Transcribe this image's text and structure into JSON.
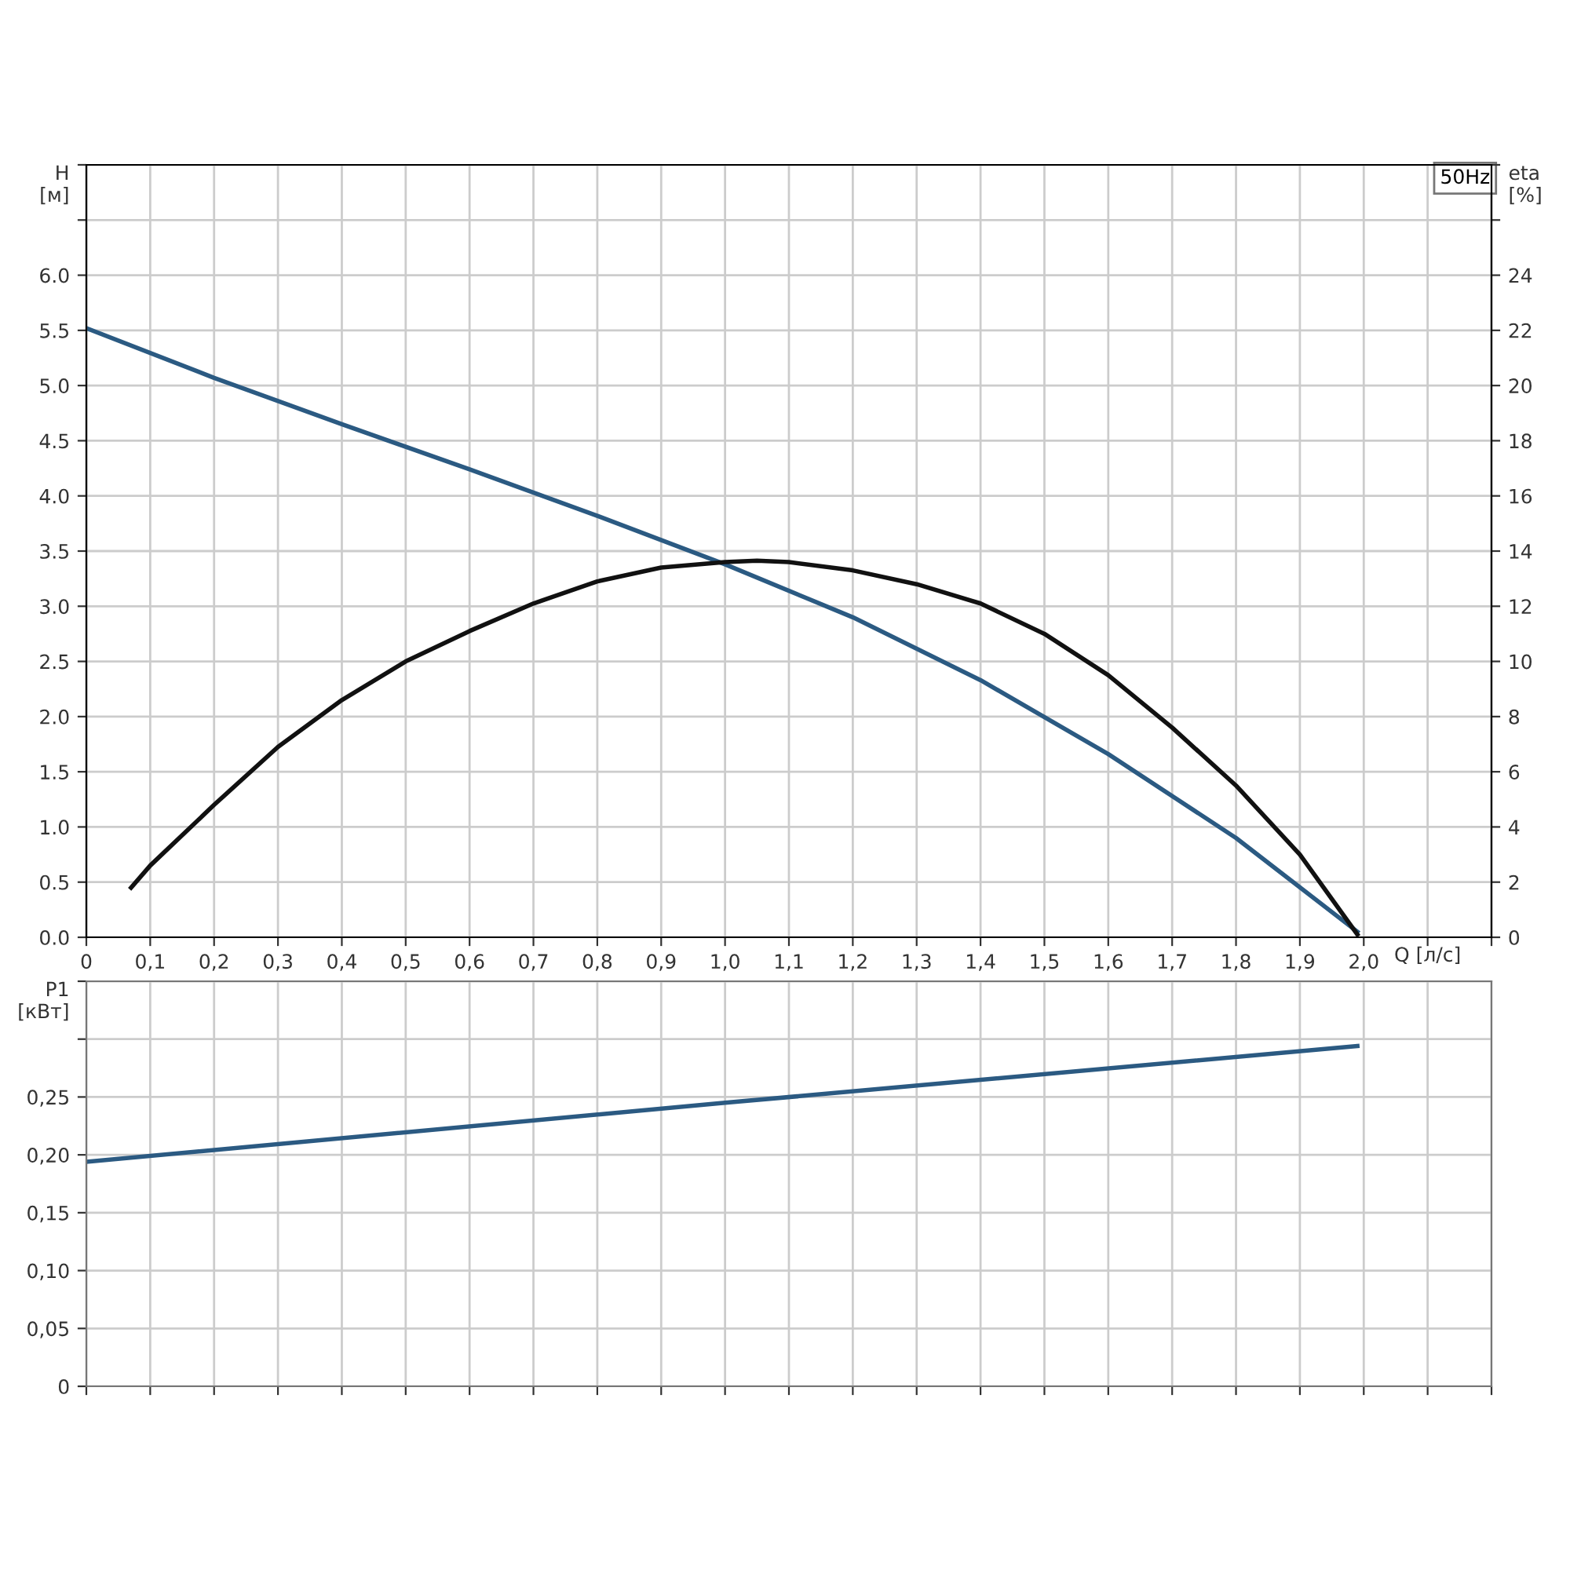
{
  "chart_data": [
    {
      "type": "line",
      "ylabel": "H\n[м]",
      "y2label": "eta\n[%]",
      "xlabel": "Q [л/с]",
      "annotations": [
        "50Hz"
      ],
      "grid": true,
      "legend": false,
      "marker": "none",
      "line_style": "solid",
      "xlim": [
        0,
        2.2
      ],
      "xticks": [
        0,
        {
          "value": 0.1,
          "label": "0,1"
        },
        {
          "value": 0.2,
          "label": "0,2"
        },
        {
          "value": 0.3,
          "label": "0,3"
        },
        {
          "value": 0.4,
          "label": "0,4"
        },
        {
          "value": 0.5,
          "label": "0,5"
        },
        {
          "value": 0.6,
          "label": "0,6"
        },
        {
          "value": 0.7,
          "label": "0,7"
        },
        {
          "value": 0.8,
          "label": "0,8"
        },
        {
          "value": 0.9,
          "label": "0,9"
        },
        {
          "value": 1.0,
          "label": "1,0"
        },
        {
          "value": 1.1,
          "label": "1,1"
        },
        {
          "value": 1.2,
          "label": "1,2"
        },
        {
          "value": 1.3,
          "label": "1,3"
        },
        {
          "value": 1.4,
          "label": "1,4"
        },
        {
          "value": 1.5,
          "label": "1,5"
        },
        {
          "value": 1.6,
          "label": "1,6"
        },
        {
          "value": 1.7,
          "label": "1,7"
        },
        {
          "value": 1.8,
          "label": "1,8"
        },
        {
          "value": 1.9,
          "label": "1,9"
        },
        {
          "value": 2.0,
          "label": "2,0"
        },
        {
          "value": 2.1,
          "label": null
        },
        {
          "value": 2.2,
          "label": null
        }
      ],
      "ylim": [
        0,
        7
      ],
      "yticks": [
        {
          "value": 0,
          "label": "0.0"
        },
        0.5,
        {
          "value": 1,
          "label": "1.0"
        },
        1.5,
        {
          "value": 2,
          "label": "2.0"
        },
        2.5,
        {
          "value": 3,
          "label": "3.0"
        },
        3.5,
        {
          "value": 4,
          "label": "4.0"
        },
        4.5,
        {
          "value": 5,
          "label": "5.0"
        },
        5.5,
        {
          "value": 6,
          "label": "6.0"
        },
        {
          "value": 6.5,
          "label": null
        },
        {
          "value": 7,
          "label": null
        }
      ],
      "y2lim": [
        0,
        28
      ],
      "y2ticks": [
        0,
        2,
        4,
        6,
        8,
        10,
        12,
        14,
        16,
        18,
        20,
        22,
        24,
        {
          "value": 26,
          "label": null
        },
        {
          "value": 28,
          "label": null
        }
      ],
      "series": [
        {
          "color": "#2b5a82",
          "x": [
            0,
            0.2,
            0.4,
            0.6,
            0.8,
            1.0,
            1.2,
            1.4,
            1.6,
            1.8,
            1.99
          ],
          "values": [
            5.52,
            5.07,
            4.65,
            4.24,
            3.82,
            3.38,
            2.9,
            2.33,
            1.66,
            0.9,
            0.05
          ]
        },
        {
          "color": "#111111",
          "axis": "y2",
          "x": [
            0.07,
            0.1,
            0.2,
            0.3,
            0.4,
            0.5,
            0.6,
            0.7,
            0.8,
            0.9,
            1.0,
            1.05,
            1.1,
            1.2,
            1.3,
            1.4,
            1.5,
            1.6,
            1.7,
            1.8,
            1.9,
            1.99
          ],
          "values": [
            1.8,
            2.6,
            4.8,
            6.9,
            8.6,
            10.0,
            11.1,
            12.1,
            12.9,
            13.4,
            13.6,
            13.65,
            13.6,
            13.3,
            12.8,
            12.1,
            11.0,
            9.5,
            7.6,
            5.5,
            3.0,
            0.1
          ]
        }
      ]
    },
    {
      "type": "line",
      "ylabel": "P1\n[кВт]",
      "grid": true,
      "legend": false,
      "marker": "none",
      "line_style": "solid",
      "tick_labels": "y",
      "xlim": [
        0,
        2.2
      ],
      "xticks": [
        0,
        0.1,
        0.2,
        0.3,
        0.4,
        0.5,
        0.6,
        0.7,
        0.8,
        0.9,
        1.0,
        1.1,
        1.2,
        1.3,
        1.4,
        1.5,
        1.6,
        1.7,
        1.8,
        1.9,
        2.0,
        2.1,
        2.2
      ],
      "ylim": [
        0,
        0.35
      ],
      "yticks": [
        0,
        {
          "value": 0.05,
          "label": "0,05"
        },
        {
          "value": 0.1,
          "label": "0,10"
        },
        {
          "value": 0.15,
          "label": "0,15"
        },
        {
          "value": 0.2,
          "label": "0,20"
        },
        {
          "value": 0.25,
          "label": "0,25"
        },
        {
          "value": 0.3,
          "label": null
        },
        {
          "value": 0.35,
          "label": null
        }
      ],
      "series": [
        {
          "color": "#2b5a82",
          "x": [
            0,
            1.0,
            1.99
          ],
          "values": [
            0.194,
            0.245,
            0.294
          ]
        }
      ]
    }
  ]
}
